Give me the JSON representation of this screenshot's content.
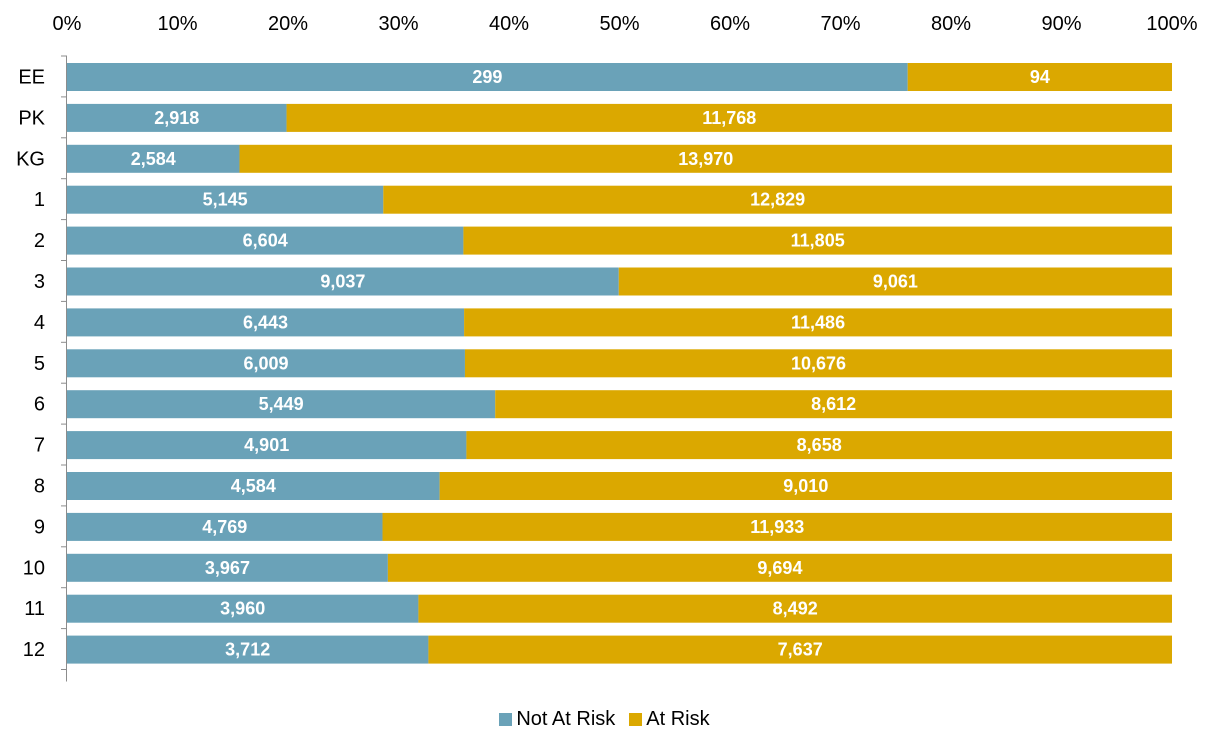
{
  "chart_data": {
    "type": "bar",
    "orientation": "horizontal",
    "stacked": "percent",
    "categories": [
      "EE",
      "PK",
      "KG",
      "1",
      "2",
      "3",
      "4",
      "5",
      "6",
      "7",
      "8",
      "9",
      "10",
      "11",
      "12"
    ],
    "series": [
      {
        "name": "Not At Risk",
        "color": "#6aa2b8",
        "values": [
          299,
          2918,
          2584,
          5145,
          6604,
          9037,
          6443,
          6009,
          5449,
          4901,
          4584,
          4769,
          3967,
          3960,
          3712
        ],
        "labels": [
          "299",
          "2,918",
          "2,584",
          "5,145",
          "6,604",
          "9,037",
          "6,443",
          "6,009",
          "5,449",
          "4,901",
          "4,584",
          "4,769",
          "3,967",
          "3,960",
          "3,712"
        ]
      },
      {
        "name": "At Risk",
        "color": "#dba800",
        "values": [
          94,
          11768,
          13970,
          12829,
          11805,
          9061,
          11486,
          10676,
          8612,
          8658,
          9010,
          11933,
          9694,
          8492,
          7637
        ],
        "labels": [
          "94",
          "11,768",
          "13,970",
          "12,829",
          "11,805",
          "9,061",
          "11,486",
          "10,676",
          "8,612",
          "8,658",
          "9,010",
          "11,933",
          "9,694",
          "8,492",
          "7,637"
        ]
      }
    ],
    "x_ticks": [
      "0%",
      "10%",
      "20%",
      "30%",
      "40%",
      "50%",
      "60%",
      "70%",
      "80%",
      "90%",
      "100%"
    ],
    "xlim": [
      0,
      100
    ],
    "x_axis_position": "top",
    "grid": false,
    "legend_position": "bottom"
  }
}
